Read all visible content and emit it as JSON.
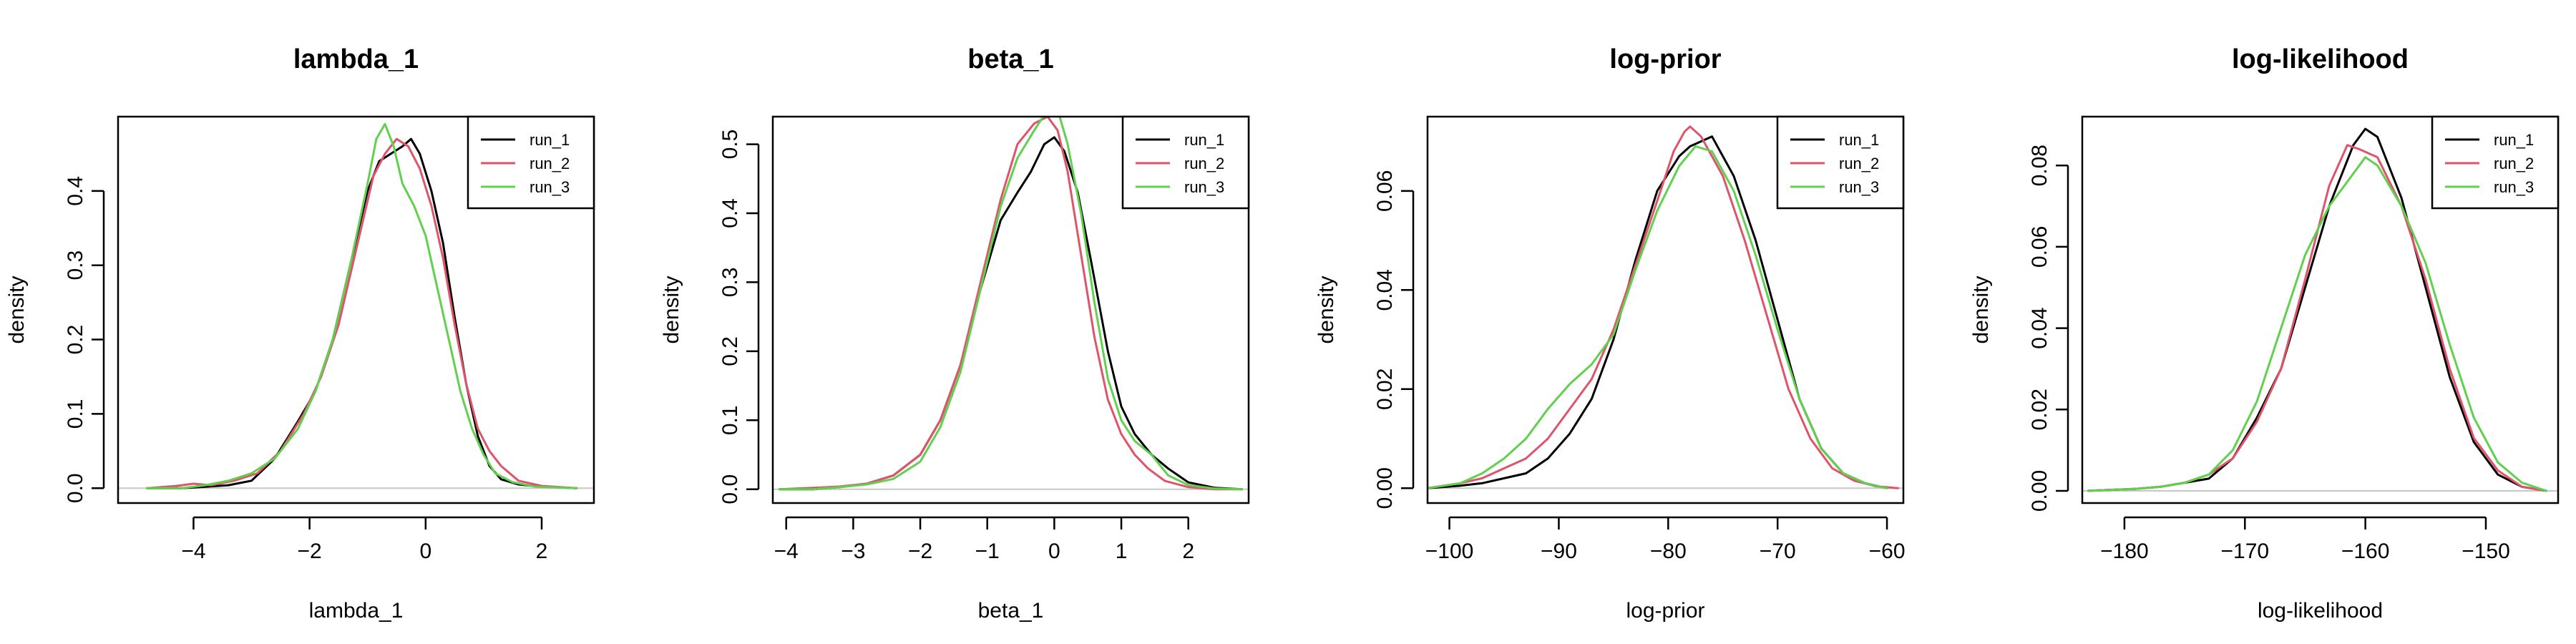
{
  "chart_data": [
    {
      "type": "line",
      "title": "lambda_1",
      "xlabel": "lambda_1",
      "ylabel": "density",
      "xlim": [
        -5.3,
        2.9
      ],
      "ylim": [
        -0.02,
        0.5
      ],
      "xticks": [
        -4,
        -2,
        0,
        2
      ],
      "yticks": [
        0.0,
        0.1,
        0.2,
        0.3,
        0.4
      ],
      "ytick_labels": [
        "0.0",
        "0.1",
        "0.2",
        "0.3",
        "0.4"
      ],
      "legend_position": "top-right",
      "series": [
        {
          "name": "run_1",
          "color": "#000000",
          "x": [
            -4.8,
            -4.2,
            -3.8,
            -3.4,
            -3.0,
            -2.6,
            -2.2,
            -1.9,
            -1.6,
            -1.3,
            -1.0,
            -0.8,
            -0.6,
            -0.4,
            -0.25,
            -0.1,
            0.1,
            0.3,
            0.5,
            0.7,
            0.9,
            1.1,
            1.3,
            1.6,
            2.0,
            2.6
          ],
          "y": [
            0.0,
            0.0,
            0.002,
            0.004,
            0.01,
            0.04,
            0.09,
            0.13,
            0.2,
            0.3,
            0.4,
            0.44,
            0.45,
            0.46,
            0.47,
            0.45,
            0.4,
            0.33,
            0.23,
            0.14,
            0.07,
            0.03,
            0.012,
            0.005,
            0.002,
            0.0
          ]
        },
        {
          "name": "run_2",
          "color": "#df536b",
          "x": [
            -4.8,
            -4.3,
            -4.0,
            -3.7,
            -3.3,
            -2.9,
            -2.5,
            -2.1,
            -1.8,
            -1.5,
            -1.2,
            -0.9,
            -0.7,
            -0.5,
            -0.3,
            -0.1,
            0.1,
            0.3,
            0.5,
            0.7,
            0.9,
            1.1,
            1.3,
            1.6,
            2.0,
            2.6
          ],
          "y": [
            0.0,
            0.003,
            0.006,
            0.004,
            0.01,
            0.02,
            0.05,
            0.1,
            0.15,
            0.22,
            0.32,
            0.42,
            0.45,
            0.47,
            0.46,
            0.43,
            0.38,
            0.31,
            0.22,
            0.14,
            0.08,
            0.05,
            0.03,
            0.01,
            0.003,
            0.0
          ]
        },
        {
          "name": "run_3",
          "color": "#61d04f",
          "x": [
            -4.8,
            -4.2,
            -3.8,
            -3.4,
            -3.0,
            -2.6,
            -2.2,
            -1.9,
            -1.6,
            -1.3,
            -1.0,
            -0.85,
            -0.7,
            -0.55,
            -0.4,
            -0.2,
            0.0,
            0.2,
            0.4,
            0.6,
            0.8,
            1.0,
            1.2,
            1.5,
            1.9,
            2.6
          ],
          "y": [
            0.0,
            0.0,
            0.004,
            0.01,
            0.02,
            0.04,
            0.08,
            0.13,
            0.2,
            0.3,
            0.41,
            0.47,
            0.49,
            0.46,
            0.41,
            0.38,
            0.34,
            0.27,
            0.2,
            0.13,
            0.08,
            0.045,
            0.02,
            0.008,
            0.002,
            0.0
          ]
        }
      ]
    },
    {
      "type": "line",
      "title": "beta_1",
      "xlabel": "beta_1",
      "ylabel": "density",
      "xlim": [
        -4.2,
        2.9
      ],
      "ylim": [
        -0.02,
        0.54
      ],
      "xticks": [
        -4,
        -3,
        -2,
        -1,
        0,
        1,
        2
      ],
      "yticks": [
        0.0,
        0.1,
        0.2,
        0.3,
        0.4,
        0.5
      ],
      "ytick_labels": [
        "0.0",
        "0.1",
        "0.2",
        "0.3",
        "0.4",
        "0.5"
      ],
      "legend_position": "top-right",
      "series": [
        {
          "name": "run_1",
          "color": "#000000",
          "x": [
            -4.1,
            -3.6,
            -3.2,
            -2.8,
            -2.4,
            -2.0,
            -1.7,
            -1.4,
            -1.1,
            -0.8,
            -0.55,
            -0.35,
            -0.15,
            0.0,
            0.15,
            0.35,
            0.55,
            0.8,
            1.0,
            1.2,
            1.45,
            1.7,
            2.0,
            2.4,
            2.8
          ],
          "y": [
            0.0,
            0.0,
            0.003,
            0.008,
            0.02,
            0.05,
            0.1,
            0.18,
            0.29,
            0.39,
            0.43,
            0.46,
            0.5,
            0.51,
            0.49,
            0.43,
            0.33,
            0.2,
            0.12,
            0.08,
            0.05,
            0.03,
            0.01,
            0.002,
            0.0
          ]
        },
        {
          "name": "run_2",
          "color": "#df536b",
          "x": [
            -4.1,
            -3.6,
            -3.2,
            -2.8,
            -2.4,
            -2.0,
            -1.7,
            -1.4,
            -1.1,
            -0.8,
            -0.55,
            -0.3,
            -0.1,
            0.05,
            0.2,
            0.4,
            0.6,
            0.8,
            1.0,
            1.2,
            1.4,
            1.65,
            2.0,
            2.4,
            2.8
          ],
          "y": [
            0.0,
            0.002,
            0.004,
            0.008,
            0.02,
            0.05,
            0.1,
            0.18,
            0.3,
            0.42,
            0.5,
            0.53,
            0.54,
            0.52,
            0.46,
            0.34,
            0.22,
            0.13,
            0.08,
            0.05,
            0.03,
            0.012,
            0.003,
            0.0,
            0.0
          ]
        },
        {
          "name": "run_3",
          "color": "#61d04f",
          "x": [
            -4.1,
            -3.6,
            -3.2,
            -2.8,
            -2.4,
            -2.0,
            -1.7,
            -1.4,
            -1.1,
            -0.8,
            -0.55,
            -0.3,
            -0.1,
            0.05,
            0.2,
            0.4,
            0.6,
            0.8,
            1.0,
            1.2,
            1.45,
            1.7,
            2.0,
            2.4,
            2.8
          ],
          "y": [
            0.0,
            0.0,
            0.003,
            0.007,
            0.015,
            0.04,
            0.09,
            0.17,
            0.29,
            0.41,
            0.48,
            0.52,
            0.55,
            0.55,
            0.5,
            0.4,
            0.27,
            0.16,
            0.1,
            0.07,
            0.05,
            0.02,
            0.006,
            0.001,
            0.0
          ]
        }
      ]
    },
    {
      "type": "line",
      "title": "log-prior",
      "xlabel": "log-prior",
      "ylabel": "density",
      "xlim": [
        -102,
        -58.5
      ],
      "ylim": [
        -0.003,
        0.075
      ],
      "xticks": [
        -100,
        -90,
        -80,
        -70,
        -60
      ],
      "yticks": [
        0.0,
        0.02,
        0.04,
        0.06
      ],
      "ytick_labels": [
        "0.00",
        "0.02",
        "0.04",
        "0.06"
      ],
      "legend_position": "top-right",
      "series": [
        {
          "name": "run_1",
          "color": "#000000",
          "x": [
            -102,
            -99,
            -97,
            -95,
            -93,
            -91,
            -89,
            -87,
            -85,
            -83,
            -81,
            -79,
            -78,
            -77,
            -76,
            -74,
            -72,
            -70,
            -68,
            -66,
            -64,
            -62,
            -60
          ],
          "y": [
            0.0,
            0.0005,
            0.001,
            0.002,
            0.003,
            0.006,
            0.011,
            0.018,
            0.03,
            0.046,
            0.06,
            0.067,
            0.069,
            0.07,
            0.071,
            0.063,
            0.05,
            0.034,
            0.018,
            0.008,
            0.003,
            0.001,
            0.0
          ]
        },
        {
          "name": "run_2",
          "color": "#df536b",
          "x": [
            -102,
            -99,
            -97,
            -95,
            -93,
            -91,
            -89,
            -87,
            -85,
            -83,
            -81,
            -79.5,
            -78.5,
            -78,
            -77,
            -75,
            -73,
            -71,
            -69,
            -67,
            -65,
            -63,
            -61,
            -59
          ],
          "y": [
            0.0,
            0.001,
            0.002,
            0.004,
            0.006,
            0.01,
            0.016,
            0.022,
            0.032,
            0.045,
            0.058,
            0.068,
            0.072,
            0.073,
            0.071,
            0.063,
            0.05,
            0.035,
            0.02,
            0.01,
            0.004,
            0.0015,
            0.0004,
            0.0
          ]
        },
        {
          "name": "run_3",
          "color": "#61d04f",
          "x": [
            -102,
            -99,
            -97,
            -95,
            -93,
            -91,
            -89,
            -87,
            -85,
            -83,
            -81,
            -79,
            -77.5,
            -76,
            -74,
            -72,
            -70,
            -68,
            -66,
            -64,
            -62,
            -60
          ],
          "y": [
            0.0,
            0.001,
            0.003,
            0.006,
            0.01,
            0.016,
            0.021,
            0.025,
            0.031,
            0.044,
            0.056,
            0.065,
            0.069,
            0.068,
            0.06,
            0.047,
            0.032,
            0.018,
            0.008,
            0.003,
            0.001,
            0.0
          ]
        }
      ]
    },
    {
      "type": "line",
      "title": "log-likelihood",
      "xlabel": "log-likelihood",
      "ylabel": "density",
      "xlim": [
        -183.5,
        -144
      ],
      "ylim": [
        -0.003,
        0.092
      ],
      "xticks": [
        -180,
        -170,
        -160,
        -150
      ],
      "yticks": [
        0.0,
        0.02,
        0.04,
        0.06,
        0.08
      ],
      "ytick_labels": [
        "0.00",
        "0.02",
        "0.04",
        "0.06",
        "0.08"
      ],
      "legend_position": "top-right",
      "series": [
        {
          "name": "run_1",
          "color": "#000000",
          "x": [
            -183,
            -179,
            -177,
            -175,
            -173,
            -171,
            -169,
            -167,
            -165,
            -163,
            -161,
            -160,
            -159,
            -157,
            -155,
            -153,
            -151,
            -149,
            -147,
            -145
          ],
          "y": [
            0.0,
            0.0005,
            0.001,
            0.002,
            0.003,
            0.008,
            0.018,
            0.03,
            0.05,
            0.07,
            0.085,
            0.089,
            0.087,
            0.072,
            0.05,
            0.028,
            0.012,
            0.004,
            0.001,
            0.0
          ]
        },
        {
          "name": "run_2",
          "color": "#df536b",
          "x": [
            -183,
            -179,
            -177,
            -175,
            -173,
            -171,
            -169,
            -167,
            -165,
            -163,
            -161.5,
            -160.5,
            -159,
            -157,
            -155,
            -153,
            -151,
            -149,
            -147,
            -145
          ],
          "y": [
            0.0,
            0.0005,
            0.001,
            0.002,
            0.004,
            0.008,
            0.017,
            0.03,
            0.052,
            0.075,
            0.085,
            0.084,
            0.082,
            0.07,
            0.052,
            0.03,
            0.013,
            0.005,
            0.001,
            0.0
          ]
        },
        {
          "name": "run_3",
          "color": "#61d04f",
          "x": [
            -183,
            -179,
            -177,
            -175,
            -173,
            -171,
            -169,
            -167,
            -165,
            -163,
            -161,
            -160,
            -159,
            -157,
            -155,
            -153,
            -151,
            -149,
            -147,
            -145
          ],
          "y": [
            0.0,
            0.0005,
            0.001,
            0.002,
            0.004,
            0.01,
            0.022,
            0.04,
            0.058,
            0.07,
            0.078,
            0.082,
            0.08,
            0.07,
            0.056,
            0.036,
            0.018,
            0.007,
            0.002,
            0.0
          ]
        }
      ]
    }
  ]
}
